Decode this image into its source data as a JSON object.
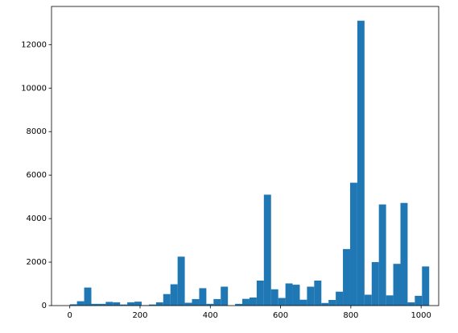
{
  "chart_data": {
    "type": "histogram",
    "bins": [
      0,
      20.46,
      40.92,
      61.38,
      81.84,
      102.3,
      122.76,
      143.22,
      163.68,
      184.14,
      204.6,
      225.06,
      245.52,
      265.98,
      286.44,
      306.9,
      327.36,
      347.82,
      368.28,
      388.74,
      409.2,
      429.66,
      450.12,
      470.58,
      491.04,
      511.5,
      531.96,
      552.42,
      572.88,
      593.34,
      613.8,
      634.26,
      654.72,
      675.18,
      695.64,
      716.1,
      736.56,
      757.02,
      777.48,
      797.94,
      818.4,
      838.86,
      859.32,
      879.78,
      900.24,
      920.7,
      941.16,
      961.62,
      982.08,
      1002.54,
      1023
    ],
    "values": [
      60,
      200,
      830,
      80,
      80,
      170,
      150,
      50,
      150,
      180,
      20,
      50,
      150,
      530,
      980,
      2250,
      130,
      300,
      800,
      80,
      300,
      870,
      0,
      80,
      310,
      370,
      1150,
      5100,
      750,
      350,
      1020,
      960,
      270,
      870,
      1150,
      120,
      260,
      640,
      2600,
      5650,
      13100,
      500,
      2000,
      4650,
      470,
      1920,
      4720,
      150,
      450,
      1800
    ],
    "color": "#1f77b4",
    "xlim": [
      -52,
      1050
    ],
    "xticks": [
      0,
      200,
      400,
      600,
      800,
      1000
    ],
    "ylim": [
      0,
      13755
    ],
    "yticks": [
      0,
      2000,
      4000,
      6000,
      8000,
      10000,
      12000
    ]
  }
}
